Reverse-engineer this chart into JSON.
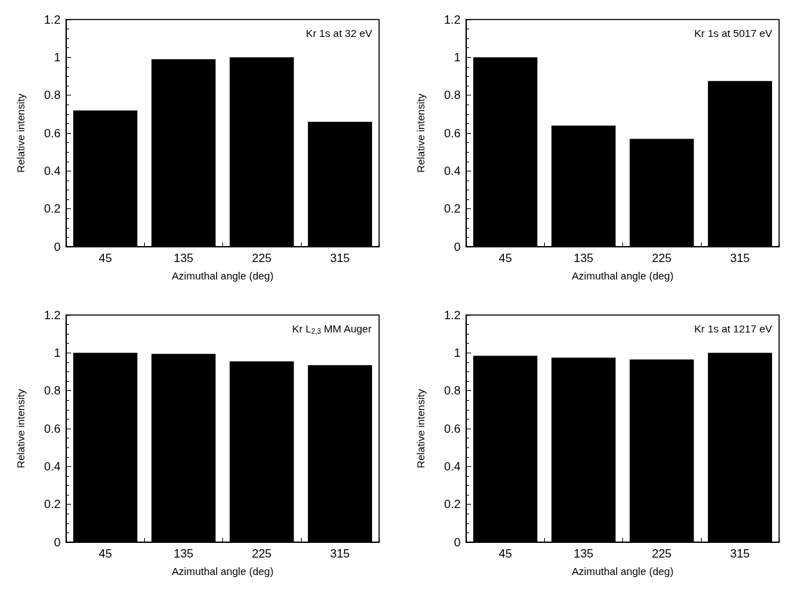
{
  "chart_data": [
    {
      "type": "bar",
      "annotations": [
        "Kr 1s at 32 eV"
      ],
      "xlabel": "Azimuthal angle (deg)",
      "ylabel": "Relative intensity",
      "categories": [
        "45",
        "135",
        "225",
        "315"
      ],
      "values": [
        0.72,
        0.99,
        1.0,
        0.66
      ],
      "color": "#000000",
      "ylim": [
        0,
        1.2
      ],
      "yticks": [
        0,
        0.2,
        0.4,
        0.6,
        0.8,
        1,
        1.2
      ]
    },
    {
      "type": "bar",
      "annotations": [
        "Kr 1s at 5017 eV"
      ],
      "xlabel": "Azimuthal angle (deg)",
      "ylabel": "Relative intensity",
      "categories": [
        "45",
        "135",
        "225",
        "315"
      ],
      "values": [
        1.0,
        0.64,
        0.57,
        0.875
      ],
      "color": "#000000",
      "ylim": [
        0,
        1.2
      ],
      "yticks": [
        0,
        0.2,
        0.4,
        0.6,
        0.8,
        1,
        1.2
      ]
    },
    {
      "type": "bar",
      "annotations": [
        "Kr L$_{2,3}$ MM Auger"
      ],
      "xlabel": "Azimuthal angle (deg)",
      "ylabel": "Relative intensity",
      "categories": [
        "45",
        "135",
        "225",
        "315"
      ],
      "values": [
        1.0,
        0.995,
        0.955,
        0.935
      ],
      "color": "#000000",
      "ylim": [
        0,
        1.2
      ],
      "yticks": [
        0,
        0.2,
        0.4,
        0.6,
        0.8,
        1,
        1.2
      ]
    },
    {
      "type": "bar",
      "annotations": [
        "Kr 1s at 1217 eV"
      ],
      "xlabel": "Azimuthal angle (deg)",
      "ylabel": "Relative intensity",
      "categories": [
        "45",
        "135",
        "225",
        "315"
      ],
      "values": [
        0.985,
        0.975,
        0.965,
        1.0
      ],
      "color": "#000000",
      "ylim": [
        0,
        1.2
      ],
      "yticks": [
        0,
        0.2,
        0.4,
        0.6,
        0.8,
        1,
        1.2
      ]
    }
  ]
}
